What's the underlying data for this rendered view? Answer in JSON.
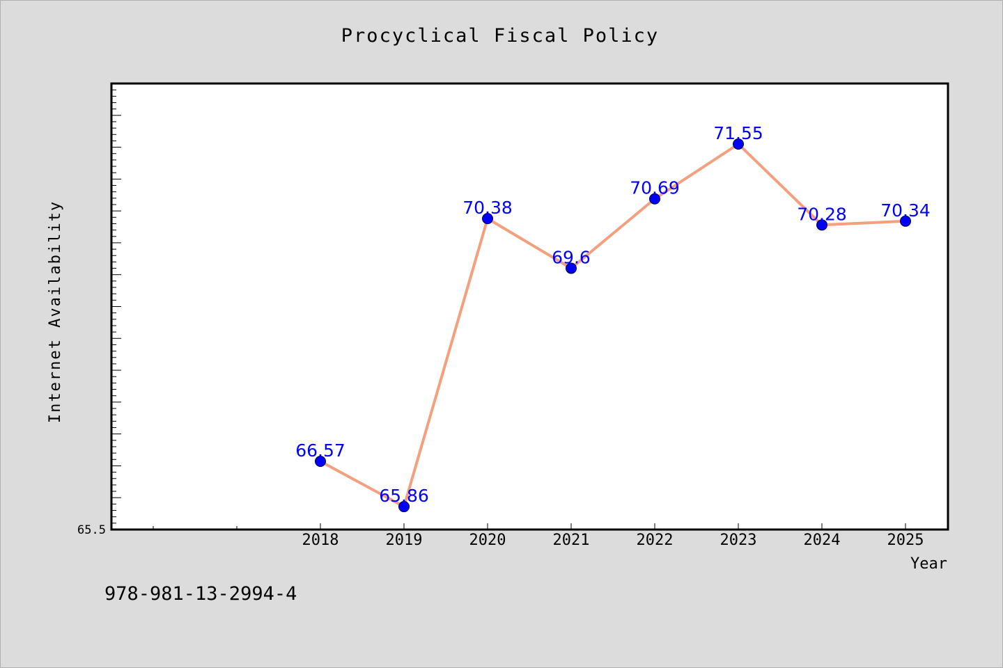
{
  "chart_data": {
    "type": "line",
    "title": "Procyclical Fiscal Policy",
    "xlabel": "Year",
    "ylabel": "Internet Availability",
    "x": [
      "2018",
      "2019",
      "2020",
      "2021",
      "2022",
      "2023",
      "2024",
      "2025"
    ],
    "series": [
      {
        "values": [
          66.57,
          65.86,
          70.38,
          69.6,
          70.69,
          71.55,
          70.28,
          70.34
        ],
        "data_labels": [
          "66.57",
          "65.86",
          "70.38",
          "69.6",
          "70.69",
          "71.55",
          "70.28",
          "70.34"
        ]
      }
    ],
    "y_tick_label": "65.5",
    "ylim": [
      65.5,
      72.5
    ],
    "grid": false,
    "legend": "none",
    "colors": {
      "line": "#f4a07e",
      "marker": "#0000ff",
      "label": "#0000ff",
      "background": "#dcdcdc",
      "plot_bg": "#ffffff"
    }
  },
  "isbn": "978-981-13-2994-4"
}
